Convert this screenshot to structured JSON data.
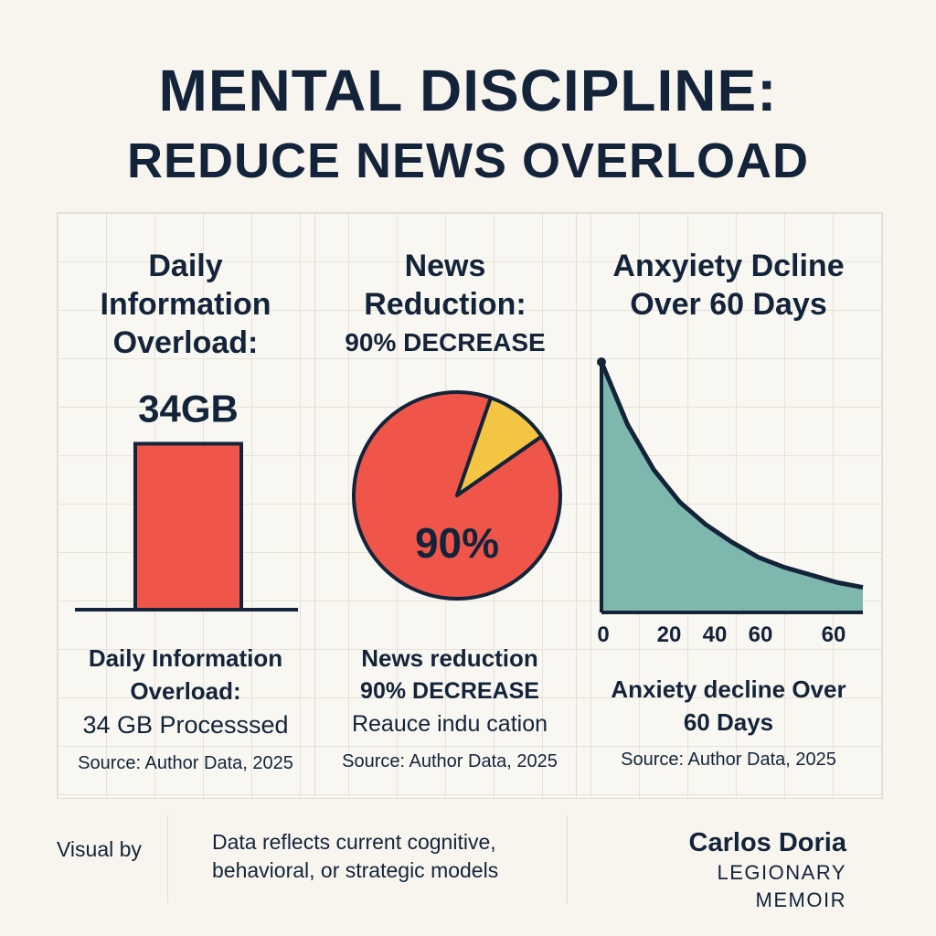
{
  "title": {
    "line1": "MENTAL DISCIPLINE:",
    "line2": "REDUCE NEWS OVERLOAD"
  },
  "colors": {
    "navy": "#13243a",
    "red": "#ef5548",
    "yellow": "#f4c542",
    "teal": "#7db7ad",
    "background": "#f8f5ef"
  },
  "panels": [
    {
      "title_lines": [
        "Daily",
        "Information",
        "Overload:"
      ],
      "value_label": "34GB",
      "caption_lines": [
        "Daily Information",
        "Overload:",
        "34 GB Processsed"
      ],
      "source": "Source: Author Data, 2025"
    },
    {
      "title_lines": [
        "News",
        "Reduction:",
        "90% DECREASE"
      ],
      "pie_label": "90%",
      "caption_lines": [
        "News reduction",
        "90% DECREASE",
        "Reauce indu cation"
      ],
      "source": "Source: Author Data, 2025"
    },
    {
      "title_lines": [
        "Anxyiety Dcline",
        "Over 60 Days"
      ],
      "caption_lines": [
        "Anxiety decline Over",
        "60 Days"
      ],
      "source": "Source: Author Data,  2025"
    }
  ],
  "chart_data": [
    {
      "type": "bar",
      "categories": [
        ""
      ],
      "values": [
        34
      ],
      "unit": "GB",
      "ylim": [
        0,
        50
      ]
    },
    {
      "type": "pie",
      "slices": [
        {
          "label": "90%",
          "value": 90,
          "color": "#ef5548"
        },
        {
          "label": "",
          "value": 10,
          "color": "#f4c542"
        }
      ]
    },
    {
      "type": "area",
      "x_tick_labels": [
        "0",
        "20",
        "40",
        "60",
        "60"
      ],
      "curve": "exponential decay",
      "x": [
        0,
        10,
        20,
        30,
        40,
        50,
        60,
        70,
        80,
        90,
        100
      ],
      "y": [
        100,
        75,
        57,
        44,
        35,
        28,
        22,
        18,
        15,
        12,
        10
      ],
      "ylim": [
        0,
        100
      ]
    }
  ],
  "footer": {
    "visual_by": "Visual by",
    "note_lines": [
      "Data reflects current cognitive,",
      "behavioral, or strategic models"
    ],
    "author": "Carlos Doria",
    "publication": "LEGIONARY MEMOIR"
  }
}
